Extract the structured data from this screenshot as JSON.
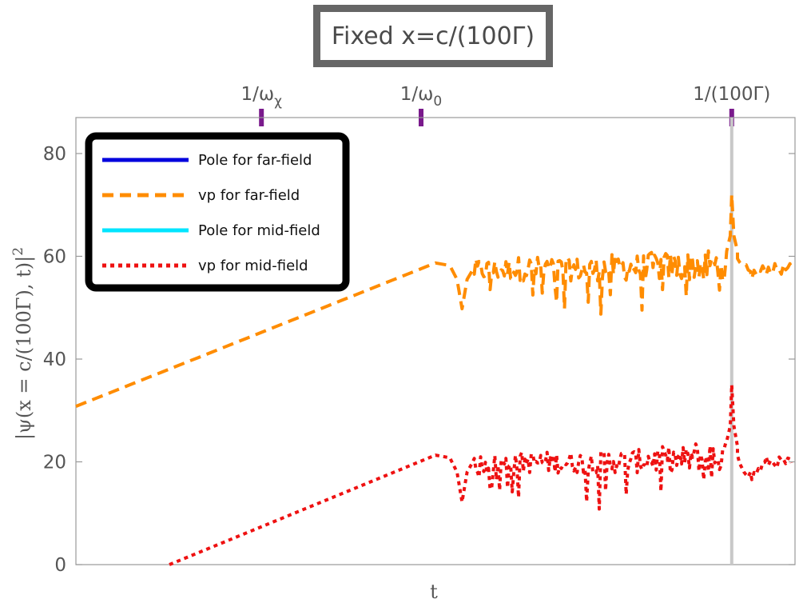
{
  "chart_data": {
    "type": "line",
    "title": "Fixed x=c/(100Γ)",
    "xlabel": "t",
    "ylabel": "|ψ(x = c/(100Γ), t)|²",
    "ylabel_parts": {
      "main": "|ψ(x = c/(100Γ), t)|",
      "sup": "2"
    },
    "ylim": [
      0,
      87
    ],
    "yticks": [
      "0",
      "20",
      "40",
      "60",
      "80"
    ],
    "ytick_values": [
      0,
      20,
      40,
      60,
      80
    ],
    "xlim": [
      0,
      1000
    ],
    "top_ticks": [
      {
        "label": "1/ωχ",
        "main": "1/ω",
        "sub": "χ",
        "x": 258
      },
      {
        "label": "1/ω0",
        "main": "1/ω",
        "sub": "0",
        "x": 480
      },
      {
        "label": "1/(100Γ)",
        "main": "1/(100Γ)",
        "sub": "",
        "x": 912
      }
    ],
    "vertical_marker_x": 912,
    "legend_position": "top-left",
    "grid": false,
    "series": [
      {
        "name": "Pole for far-field",
        "color": "#0000dd",
        "style": "solid",
        "points": []
      },
      {
        "name": "vp for far-field",
        "color": "#ff8c00",
        "style": "dashed",
        "trend": [
          [
            0,
            30.8
          ],
          [
            500,
            58.7
          ]
        ],
        "turnover": [
          [
            500,
            58.7
          ],
          [
            520,
            58.2
          ],
          [
            530,
            55.5
          ],
          [
            537,
            49.8
          ],
          [
            544,
            55.5
          ],
          [
            552,
            57.4
          ]
        ],
        "noisy": {
          "x_start": 552,
          "x_end": 912,
          "baseline": 57.4,
          "lows": [
            52,
            50,
            48,
            47,
            51,
            53
          ],
          "highs": [
            59.5,
            60,
            59.8,
            60.4,
            60.8,
            61.5
          ]
        },
        "spike": [
          [
            905,
            61
          ],
          [
            910,
            64
          ],
          [
            912,
            72
          ],
          [
            915,
            64
          ],
          [
            920,
            61
          ]
        ],
        "settle": [
          [
            920,
            58.5
          ],
          [
            940,
            56.5
          ],
          [
            960,
            57.5
          ],
          [
            995,
            57.5
          ]
        ]
      },
      {
        "name": "Pole for mid-field",
        "color": "#00e5ff",
        "style": "solid",
        "points": []
      },
      {
        "name": "vp for mid-field",
        "color": "#ee1111",
        "style": "dotted",
        "trend": [
          [
            130,
            0
          ],
          [
            500,
            21.3
          ]
        ],
        "turnover": [
          [
            500,
            21.3
          ],
          [
            520,
            20.8
          ],
          [
            530,
            18
          ],
          [
            537,
            12.2
          ],
          [
            544,
            18
          ],
          [
            552,
            20
          ]
        ],
        "noisy": {
          "x_start": 552,
          "x_end": 912,
          "baseline": 20,
          "lows": [
            14,
            12,
            10,
            9.5,
            13,
            15
          ],
          "highs": [
            21.5,
            22,
            22,
            22.4,
            23,
            24
          ]
        },
        "spike": [
          [
            905,
            24
          ],
          [
            910,
            27
          ],
          [
            912,
            35
          ],
          [
            915,
            27
          ],
          [
            920,
            23
          ]
        ],
        "settle": [
          [
            920,
            20.5
          ],
          [
            940,
            17
          ],
          [
            960,
            20
          ],
          [
            995,
            19.8
          ]
        ]
      }
    ]
  }
}
